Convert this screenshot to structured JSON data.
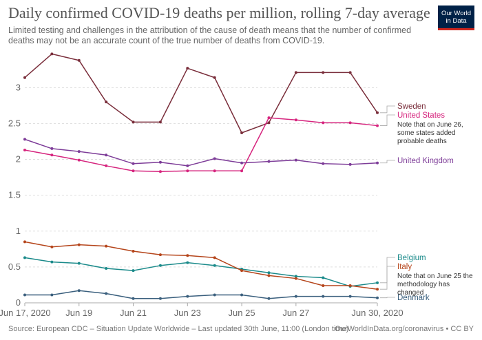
{
  "title": "Daily confirmed COVID-19 deaths per million, rolling 7-day average",
  "subtitle": "Limited testing and challenges in the attribution of the cause of death means that the number of confirmed deaths may not be an accurate count of the true number of deaths from COVID-19.",
  "logo": {
    "line1": "Our World",
    "line2": "in Data"
  },
  "footer": {
    "source": "Source: European CDC – Situation Update Worldwide – Last updated 30th June, 11:00 (London time)",
    "credit": "OurWorldInData.org/coronavirus • CC BY"
  },
  "chart_data": {
    "type": "line",
    "x": [
      "Jun 17, 2020",
      "Jun 18",
      "Jun 19",
      "Jun 20",
      "Jun 21",
      "Jun 22",
      "Jun 23",
      "Jun 24",
      "Jun 25",
      "Jun 26",
      "Jun 27",
      "Jun 28",
      "Jun 29",
      "Jun 30, 2020"
    ],
    "xticks": [
      "Jun 17, 2020",
      "Jun 19",
      "Jun 21",
      "Jun 23",
      "Jun 25",
      "Jun 27",
      "Jun 30, 2020"
    ],
    "xtick_index": [
      0,
      2,
      4,
      6,
      8,
      10,
      13
    ],
    "ylim": [
      0,
      3.55
    ],
    "yticks": [
      0,
      0.5,
      1,
      1.5,
      2,
      2.5,
      3
    ],
    "grid": true,
    "series": [
      {
        "name": "Sweden",
        "color": "#7a2e3b",
        "values": [
          3.14,
          3.47,
          3.38,
          2.8,
          2.52,
          2.52,
          3.27,
          3.14,
          2.37,
          2.51,
          3.21,
          3.21,
          3.21,
          2.65
        ]
      },
      {
        "name": "United States",
        "color": "#d6257e",
        "values": [
          2.13,
          2.06,
          1.99,
          1.91,
          1.84,
          1.83,
          1.84,
          1.84,
          1.84,
          2.58,
          2.55,
          2.51,
          2.51,
          2.47
        ]
      },
      {
        "name": "United Kingdom",
        "color": "#7d3c98",
        "values": [
          2.28,
          2.15,
          2.11,
          2.06,
          1.94,
          1.96,
          1.91,
          2.01,
          1.95,
          1.97,
          1.99,
          1.94,
          1.93,
          1.95
        ]
      },
      {
        "name": "Belgium",
        "color": "#1a8a8a",
        "values": [
          0.63,
          0.57,
          0.55,
          0.48,
          0.45,
          0.52,
          0.56,
          0.52,
          0.47,
          0.42,
          0.37,
          0.35,
          0.23,
          0.28
        ]
      },
      {
        "name": "Italy",
        "color": "#b5451b",
        "values": [
          0.85,
          0.78,
          0.81,
          0.79,
          0.72,
          0.67,
          0.66,
          0.63,
          0.45,
          0.38,
          0.34,
          0.24,
          0.24,
          0.19
        ]
      },
      {
        "name": "Denmark",
        "color": "#3a5f7d",
        "values": [
          0.11,
          0.11,
          0.17,
          0.13,
          0.06,
          0.06,
          0.09,
          0.11,
          0.11,
          0.06,
          0.09,
          0.09,
          0.09,
          0.07
        ]
      }
    ],
    "annotations": [
      {
        "series": "United States",
        "text": [
          "Note that on June 26,",
          "some states added",
          "probable deaths"
        ]
      },
      {
        "series": "Italy",
        "text": [
          "Note that on June 25 the",
          "methodology has",
          "changed"
        ]
      }
    ]
  }
}
